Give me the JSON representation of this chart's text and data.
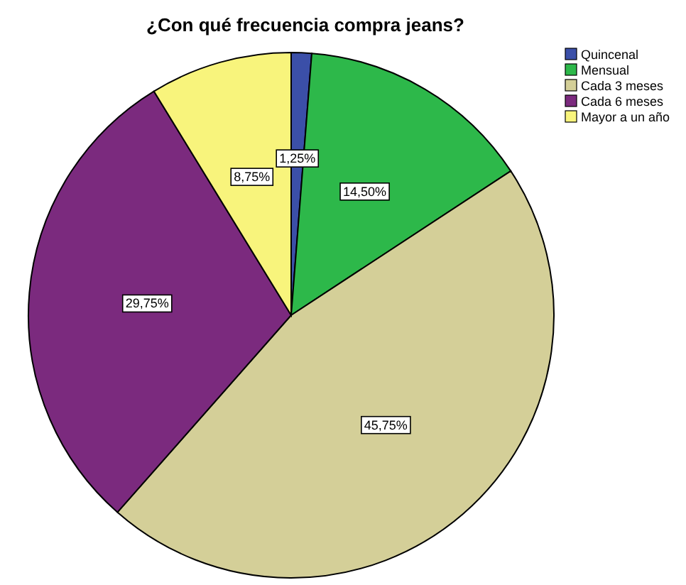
{
  "chart_data": {
    "type": "pie",
    "title": "¿Con qué frecuencia compra jeans?",
    "categories": [
      "Quincenal",
      "Mensual",
      "Cada 3 meses",
      "Cada 6 meses",
      "Mayor a un año"
    ],
    "values": [
      1.25,
      14.5,
      45.75,
      29.75,
      8.75
    ],
    "colors": [
      "#3b4fa8",
      "#2db84a",
      "#d4cf98",
      "#7b2a7e",
      "#f8f47c"
    ],
    "value_labels": [
      "1,25%",
      "14,50%",
      "45,75%",
      "29,75%",
      "8,75%"
    ],
    "legend": "top right"
  }
}
